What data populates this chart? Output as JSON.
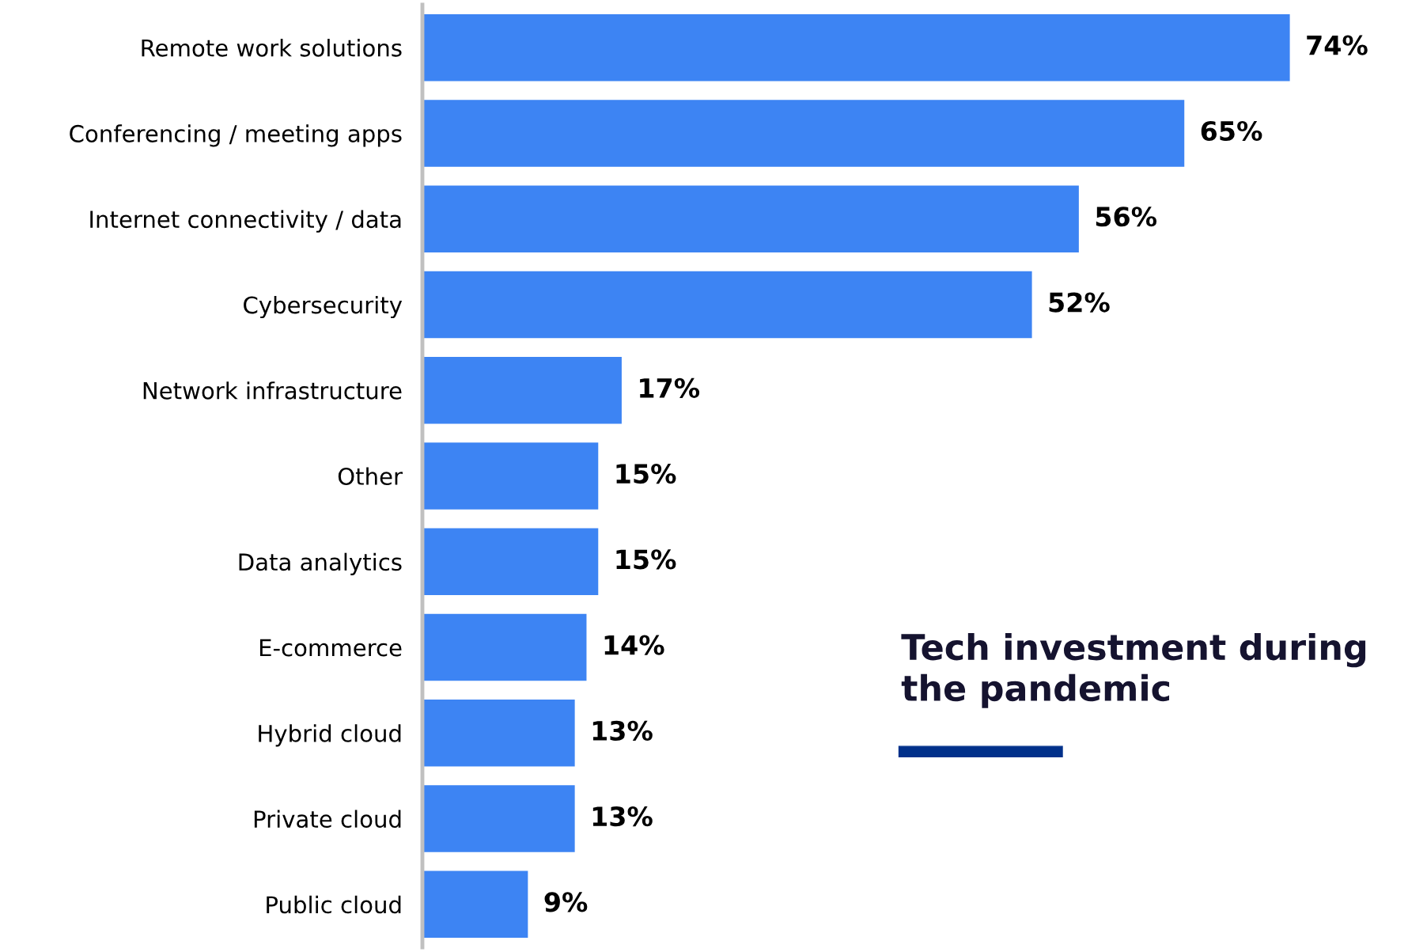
{
  "chart_data": {
    "type": "bar",
    "orientation": "horizontal",
    "title": "Tech investment during the pandemic",
    "categories": [
      "Remote work solutions",
      "Conferencing / meeting apps",
      "Internet connectivity / data",
      "Cybersecurity",
      "Network infrastructure",
      "Other",
      "Data analytics",
      "E-commerce",
      "Hybrid cloud",
      "Private cloud",
      "Public cloud"
    ],
    "values": [
      74,
      65,
      56,
      52,
      17,
      15,
      15,
      14,
      13,
      13,
      9
    ],
    "value_labels": [
      "74%",
      "65%",
      "56%",
      "52%",
      "17%",
      "15%",
      "15%",
      "14%",
      "13%",
      "13%",
      "9%"
    ],
    "color": "#3d84f3",
    "grid": false,
    "legend": false,
    "tick_labels": "y"
  }
}
